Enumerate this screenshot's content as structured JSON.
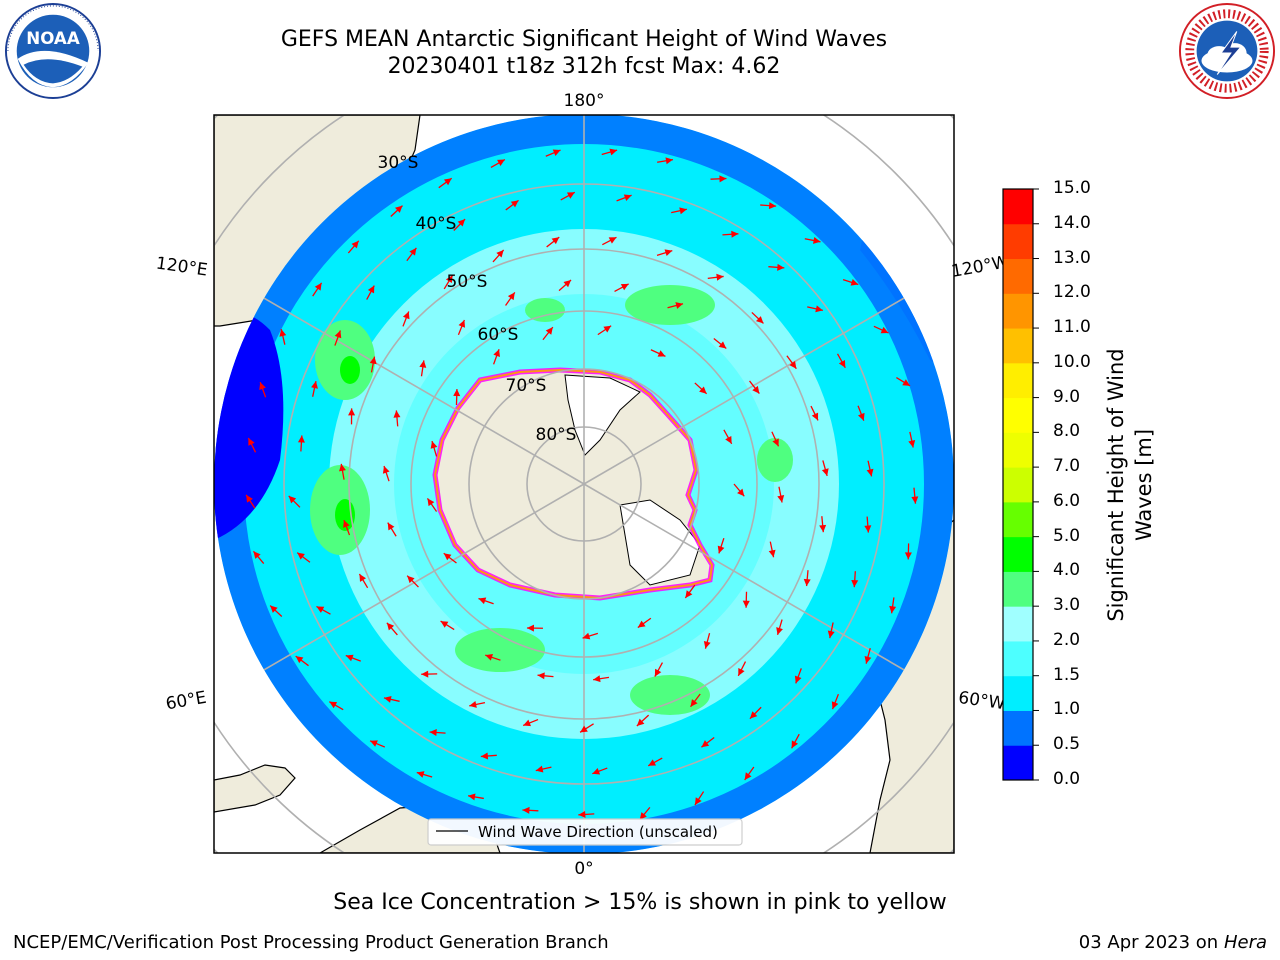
{
  "title": {
    "line1": "GEFS MEAN Antarctic Significant Height of Wind Waves",
    "line2": "20230401 t18z 312h fcst   Max: 4.62"
  },
  "logos": {
    "left": "noaa-logo",
    "right": "national-weather-service-logo"
  },
  "map": {
    "projection": "south-polar-stereographic",
    "longitude_labels": [
      "180°",
      "120°E",
      "120°W",
      "60°E",
      "60°W",
      "0°"
    ],
    "latitude_labels": [
      "30°S",
      "40°S",
      "50°S",
      "60°S",
      "70°S",
      "80°S"
    ],
    "legend_label": "Wind Wave Direction (unscaled)",
    "arrow_color": "#ff0000",
    "land_color": "#efecdc",
    "ice_colors": [
      "#ff00ff",
      "#ffa500",
      "#ffff00"
    ]
  },
  "colorbar": {
    "title_line1": "Significant Height of Wind",
    "title_line2": "Waves [m]",
    "tick_labels": [
      "0.0",
      "0.5",
      "1.0",
      "1.5",
      "2.0",
      "3.0",
      "4.0",
      "5.0",
      "6.0",
      "7.0",
      "8.0",
      "9.0",
      "10.0",
      "11.0",
      "12.0",
      "13.0",
      "14.0",
      "15.0"
    ],
    "colors": [
      "#0000ff",
      "#0073ff",
      "#00eeff",
      "#4dffff",
      "#a0ffff",
      "#4fff80",
      "#00ff00",
      "#66ff00",
      "#ccff00",
      "#eeff00",
      "#ffff00",
      "#ffee00",
      "#ffc000",
      "#ff9500",
      "#ff6a00",
      "#ff3c00",
      "#ff0000"
    ]
  },
  "caption": "Sea Ice Concentration > 15% is shown in pink to yellow",
  "footer": {
    "left": "NCEP/EMC/Verification Post Processing Product Generation Branch",
    "right_date": "03 Apr 2023 on",
    "right_host": "Hera"
  }
}
